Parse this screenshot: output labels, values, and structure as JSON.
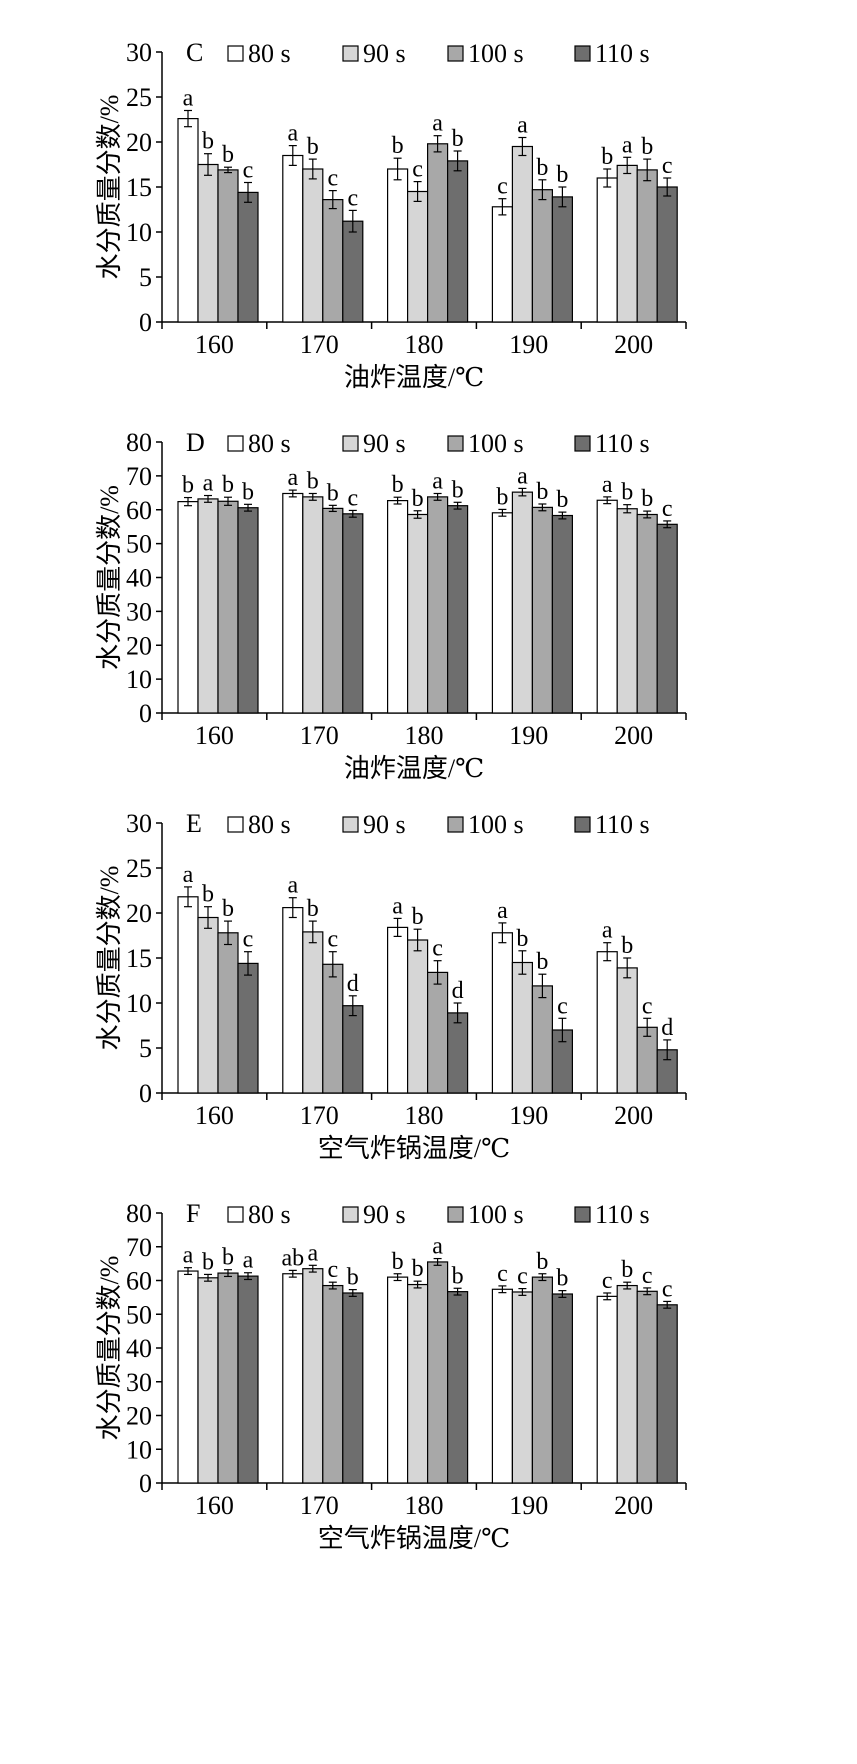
{
  "colors": {
    "series": [
      "#ffffff",
      "#d6d6d6",
      "#a8a8a8",
      "#6e6e6e"
    ],
    "stroke": "#000000"
  },
  "chart_data": [
    {
      "type": "bar",
      "panel": "C",
      "ylabel": "水分质量分数/%",
      "xlabel": "油炸温度/℃",
      "ylim": [
        0,
        30
      ],
      "yticks": [
        "0",
        "5",
        "10",
        "15",
        "20",
        "25",
        "30"
      ],
      "categories": [
        "160",
        "170",
        "180",
        "190",
        "200"
      ],
      "legend": [
        "80 s",
        "90 s",
        "100 s",
        "110 s"
      ],
      "series": [
        {
          "name": "80 s",
          "values": [
            22.6,
            18.5,
            17.0,
            12.8,
            16.0
          ],
          "errors": [
            0.9,
            1.1,
            1.2,
            0.9,
            1.0
          ],
          "labels": [
            "a",
            "a",
            "b",
            "c",
            "b"
          ]
        },
        {
          "name": "90 s",
          "values": [
            17.5,
            17.0,
            14.5,
            19.5,
            17.4
          ],
          "errors": [
            1.2,
            1.1,
            1.1,
            1.0,
            0.9
          ],
          "labels": [
            "b",
            "b",
            "c",
            "a",
            "a"
          ]
        },
        {
          "name": "100 s",
          "values": [
            16.9,
            13.6,
            19.8,
            14.7,
            16.9
          ],
          "errors": [
            0.3,
            1.0,
            0.9,
            1.1,
            1.2
          ],
          "labels": [
            "b",
            "c",
            "a",
            "b",
            "b"
          ]
        },
        {
          "name": "110 s",
          "values": [
            14.4,
            11.2,
            17.9,
            13.9,
            15.0
          ],
          "errors": [
            1.1,
            1.2,
            1.1,
            1.1,
            1.0
          ],
          "labels": [
            "c",
            "c",
            "b",
            "b",
            "c"
          ]
        }
      ]
    },
    {
      "type": "bar",
      "panel": "D",
      "ylabel": "水分质量分数/%",
      "xlabel": "油炸温度/℃",
      "ylim": [
        0,
        80
      ],
      "yticks": [
        "0",
        "10",
        "20",
        "30",
        "40",
        "50",
        "60",
        "70",
        "80"
      ],
      "categories": [
        "160",
        "170",
        "180",
        "190",
        "200"
      ],
      "legend": [
        "80 s",
        "90 s",
        "100 s",
        "110 s"
      ],
      "series": [
        {
          "name": "80 s",
          "values": [
            62.4,
            64.8,
            62.7,
            59.1,
            62.8
          ],
          "errors": [
            1.2,
            1.0,
            1.0,
            1.0,
            1.0
          ],
          "labels": [
            "b",
            "a",
            "b",
            "b",
            "a"
          ]
        },
        {
          "name": "90 s",
          "values": [
            63.2,
            63.8,
            58.6,
            65.2,
            60.3
          ],
          "errors": [
            1.0,
            1.0,
            1.1,
            1.1,
            1.2
          ],
          "labels": [
            "a",
            "b",
            "b",
            "a",
            "b"
          ]
        },
        {
          "name": "100 s",
          "values": [
            62.5,
            60.4,
            63.8,
            60.7,
            58.6
          ],
          "errors": [
            1.2,
            0.9,
            1.0,
            1.0,
            1.0
          ],
          "labels": [
            "b",
            "b",
            "a",
            "b",
            "b"
          ]
        },
        {
          "name": "110 s",
          "values": [
            60.6,
            58.8,
            61.2,
            58.3,
            55.7
          ],
          "errors": [
            1.0,
            1.0,
            1.0,
            1.0,
            1.0
          ],
          "labels": [
            "b",
            "c",
            "b",
            "b",
            "c"
          ]
        }
      ]
    },
    {
      "type": "bar",
      "panel": "E",
      "ylabel": "水分质量分数/%",
      "xlabel": "空气炸锅温度/℃",
      "ylim": [
        0,
        30
      ],
      "yticks": [
        "0",
        "5",
        "10",
        "15",
        "20",
        "25",
        "30"
      ],
      "categories": [
        "160",
        "170",
        "180",
        "190",
        "200"
      ],
      "legend": [
        "80 s",
        "90 s",
        "100 s",
        "110 s"
      ],
      "series": [
        {
          "name": "80 s",
          "values": [
            21.8,
            20.6,
            18.4,
            17.8,
            15.7
          ],
          "errors": [
            1.1,
            1.1,
            1.0,
            1.1,
            1.0
          ],
          "labels": [
            "a",
            "a",
            "a",
            "a",
            "a"
          ]
        },
        {
          "name": "90 s",
          "values": [
            19.5,
            17.9,
            17.0,
            14.5,
            13.9
          ],
          "errors": [
            1.2,
            1.2,
            1.2,
            1.3,
            1.1
          ],
          "labels": [
            "b",
            "b",
            "b",
            "b",
            "b"
          ]
        },
        {
          "name": "100 s",
          "values": [
            17.8,
            14.3,
            13.4,
            11.9,
            7.3
          ],
          "errors": [
            1.3,
            1.4,
            1.3,
            1.3,
            1.0
          ],
          "labels": [
            "b",
            "c",
            "c",
            "b",
            "c"
          ]
        },
        {
          "name": "110 s",
          "values": [
            14.4,
            9.7,
            8.9,
            7.0,
            4.8
          ],
          "errors": [
            1.3,
            1.1,
            1.1,
            1.3,
            1.1
          ],
          "labels": [
            "c",
            "d",
            "d",
            "c",
            "d"
          ]
        }
      ]
    },
    {
      "type": "bar",
      "panel": "F",
      "ylabel": "水分质量分数/%",
      "xlabel": "空气炸锅温度/℃",
      "ylim": [
        0,
        80
      ],
      "yticks": [
        "0",
        "10",
        "20",
        "30",
        "40",
        "50",
        "60",
        "70",
        "80"
      ],
      "categories": [
        "160",
        "170",
        "180",
        "190",
        "200"
      ],
      "legend": [
        "80 s",
        "90 s",
        "100 s",
        "110 s"
      ],
      "series": [
        {
          "name": "80 s",
          "values": [
            62.8,
            62.0,
            61.0,
            57.4,
            55.3
          ],
          "errors": [
            1.0,
            1.0,
            1.0,
            1.0,
            1.0
          ],
          "labels": [
            "a",
            "ab",
            "b",
            "c",
            "c"
          ]
        },
        {
          "name": "90 s",
          "values": [
            60.8,
            63.5,
            58.8,
            56.6,
            58.5
          ],
          "errors": [
            1.0,
            1.0,
            1.0,
            1.0,
            1.0
          ],
          "labels": [
            "b",
            "a",
            "b",
            "c",
            "b"
          ]
        },
        {
          "name": "100 s",
          "values": [
            62.2,
            58.5,
            65.5,
            61.0,
            56.8
          ],
          "errors": [
            1.0,
            1.0,
            1.0,
            1.0,
            1.0
          ],
          "labels": [
            "b",
            "c",
            "a",
            "b",
            "c"
          ]
        },
        {
          "name": "110 s",
          "values": [
            61.3,
            56.3,
            56.7,
            56.0,
            52.8
          ],
          "errors": [
            1.0,
            1.0,
            1.0,
            1.0,
            1.0
          ],
          "labels": [
            "a",
            "b",
            "b",
            "b",
            "c"
          ]
        }
      ]
    }
  ]
}
